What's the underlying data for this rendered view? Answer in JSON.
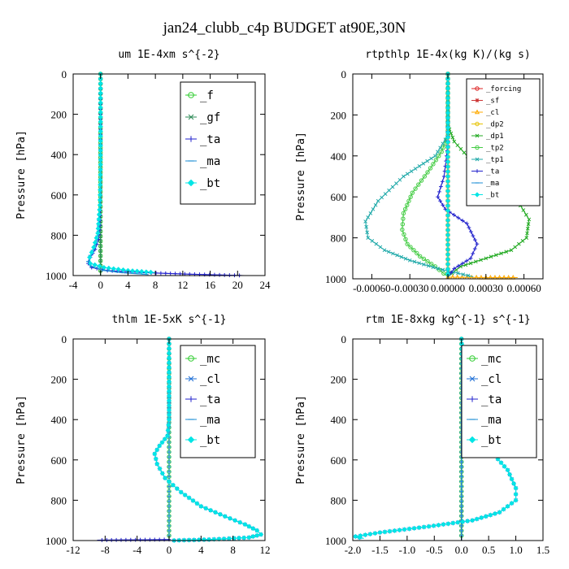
{
  "figure": {
    "title": "jan24_clubb_c4p  BUDGET at90E,30N"
  },
  "chart_data": [
    {
      "type": "line",
      "title": "um  1E-4xm s^{-2}",
      "ylabel": "Pressure [hPa]",
      "xlabel": "",
      "xlim": [
        -4,
        24
      ],
      "ylim": [
        1000,
        0
      ],
      "xticks": [
        -4,
        0,
        4,
        8,
        12,
        16,
        20,
        24
      ],
      "xtick_labels": [
        "-4",
        "0",
        "4",
        "8",
        "12",
        "16",
        "20",
        "24"
      ],
      "yticks": [
        0,
        200,
        400,
        600,
        800,
        1000
      ],
      "ytick_labels": [
        "0",
        "200",
        "400",
        "600",
        "800",
        "1000"
      ],
      "legend_position": "top-right",
      "series": [
        {
          "name": "_f",
          "color": "#2ecc2e",
          "marker": "circle",
          "x": [
            0,
            0
          ],
          "y": [
            0,
            1000
          ]
        },
        {
          "name": "_gf",
          "color": "#2e8b57",
          "marker": "x",
          "x": [
            0,
            0
          ],
          "y": [
            0,
            1000
          ]
        },
        {
          "name": "_ta",
          "color": "#2222cc",
          "marker": "plus",
          "x": [
            0,
            0,
            0,
            -0.1,
            -0.3,
            -0.8,
            -1.5,
            -1.8,
            -1.3,
            1,
            6,
            13,
            21
          ],
          "y": [
            0,
            300,
            600,
            750,
            820,
            870,
            910,
            940,
            960,
            975,
            985,
            993,
            1000
          ]
        },
        {
          "name": "_ma",
          "color": "#1f8fd6",
          "marker": "dash",
          "x": [
            0,
            0,
            -0.1,
            -0.3,
            -0.8,
            -1.5,
            -1.8,
            -1.3,
            0.5,
            3,
            7
          ],
          "y": [
            0,
            400,
            650,
            780,
            850,
            900,
            930,
            955,
            975,
            985,
            995
          ]
        },
        {
          "name": "_bt",
          "color": "#00e5e5",
          "marker": "diamond",
          "x": [
            0,
            0,
            -0.1,
            -0.4,
            -1.0,
            -1.6,
            -1.5,
            0.5,
            4,
            8
          ],
          "y": [
            0,
            450,
            650,
            790,
            860,
            910,
            940,
            960,
            975,
            985
          ]
        }
      ]
    },
    {
      "type": "line",
      "title": "rtpthlp  1E-4x(kg K)/(kg s)",
      "ylabel": "Pressure [hPa]",
      "xlabel": "",
      "xlim": [
        -0.00075,
        0.00075
      ],
      "ylim": [
        1000,
        0
      ],
      "xticks": [
        -0.0006,
        -0.0003,
        0,
        0.0003,
        0.0006
      ],
      "xtick_labels": [
        "-0.00060",
        "-0.00030",
        "0.00000",
        "0.00030",
        "0.00060"
      ],
      "yticks": [
        0,
        200,
        400,
        600,
        800,
        1000
      ],
      "ytick_labels": [
        "0",
        "200",
        "400",
        "600",
        "800",
        "1000"
      ],
      "legend_position": "top-right",
      "series": [
        {
          "name": "_forcing",
          "color": "#dd2222",
          "marker": "circle",
          "x": [
            0,
            0
          ],
          "y": [
            0,
            1000
          ]
        },
        {
          "name": "_sf",
          "color": "#cc3333",
          "marker": "star",
          "x": [
            0,
            0
          ],
          "y": [
            0,
            1000
          ]
        },
        {
          "name": "_cl",
          "color": "#ffaa00",
          "marker": "triangle",
          "x": [
            0,
            0.0003,
            0.00055
          ],
          "y": [
            992,
            994,
            994
          ]
        },
        {
          "name": "_dp2",
          "color": "#e6c200",
          "marker": "circle",
          "x": [
            0,
            0
          ],
          "y": [
            0,
            1000
          ]
        },
        {
          "name": "_dp1",
          "color": "#22aa22",
          "marker": "x",
          "x": [
            0,
            0,
            5e-05,
            0.00018,
            0.00038,
            0.00055,
            0.00064,
            0.00062,
            0.0005,
            0.0003,
            0.0001,
            0
          ],
          "y": [
            0,
            250,
            330,
            420,
            520,
            620,
            710,
            800,
            860,
            900,
            940,
            990
          ]
        },
        {
          "name": "_tp2",
          "color": "#44cc44",
          "marker": "circle",
          "x": [
            0,
            0,
            -5e-05,
            -0.00016,
            -0.00028,
            -0.00035,
            -0.00036,
            -0.00032,
            -0.00022,
            -0.0001,
            0
          ],
          "y": [
            0,
            300,
            380,
            480,
            580,
            680,
            760,
            830,
            890,
            940,
            990
          ]
        },
        {
          "name": "_tp1",
          "color": "#22aaaa",
          "marker": "x",
          "x": [
            0,
            0,
            -0.0001,
            -0.00035,
            -0.00055,
            -0.00065,
            -0.00063,
            -0.0005,
            -0.0003,
            -8e-05,
            0.0002
          ],
          "y": [
            0,
            300,
            400,
            500,
            620,
            720,
            800,
            860,
            910,
            950,
            990
          ]
        },
        {
          "name": "_ta",
          "color": "#2222cc",
          "marker": "plus",
          "x": [
            0,
            0,
            -3e-05,
            -8e-05,
            -2e-05,
            0.00015,
            0.00023,
            0.00018,
            5e-05,
            0
          ],
          "y": [
            0,
            350,
            500,
            600,
            660,
            730,
            830,
            900,
            950,
            990
          ]
        },
        {
          "name": "_ma",
          "color": "#1f8fd6",
          "marker": "dash",
          "x": [
            0,
            0
          ],
          "y": [
            0,
            1000
          ]
        },
        {
          "name": "_bt",
          "color": "#00e5e5",
          "marker": "diamond",
          "x": [
            0,
            0
          ],
          "y": [
            0,
            1000
          ]
        }
      ]
    },
    {
      "type": "line",
      "title": "thlm  1E-5xK s^{-1}",
      "ylabel": "Pressure [hPa]",
      "xlabel": "",
      "xlim": [
        -12,
        12
      ],
      "ylim": [
        1000,
        0
      ],
      "xticks": [
        -12,
        -8,
        -4,
        0,
        4,
        8,
        12
      ],
      "xtick_labels": [
        "-12",
        "-8",
        "-4",
        "0",
        "4",
        "8",
        "12"
      ],
      "yticks": [
        0,
        200,
        400,
        600,
        800,
        1000
      ],
      "ytick_labels": [
        "0",
        "200",
        "400",
        "600",
        "800",
        "1000"
      ],
      "legend_position": "top-right",
      "series": [
        {
          "name": "_mc",
          "color": "#2ecc2e",
          "marker": "circle",
          "x": [
            0,
            0
          ],
          "y": [
            0,
            1000
          ]
        },
        {
          "name": "_cl",
          "color": "#1f6fd6",
          "marker": "x",
          "x": [
            0,
            0,
            -0.2,
            -1.2,
            -1.8,
            -1.5,
            -0.5,
            1.5,
            4,
            7,
            9.5,
            11,
            11.5,
            10,
            5,
            0
          ],
          "y": [
            0,
            400,
            480,
            530,
            570,
            620,
            690,
            760,
            830,
            880,
            920,
            950,
            970,
            985,
            995,
            1000
          ]
        },
        {
          "name": "_ta",
          "color": "#2222cc",
          "marker": "plus",
          "x": [
            0,
            -3,
            -6,
            -9
          ],
          "y": [
            995,
            996,
            997,
            998
          ]
        },
        {
          "name": "_ma",
          "color": "#1f8fd6",
          "marker": "dash",
          "x": [
            0,
            0
          ],
          "y": [
            0,
            1000
          ]
        },
        {
          "name": "_bt",
          "color": "#00e5e5",
          "marker": "diamond",
          "x": [
            0,
            0,
            -0.2,
            -1.2,
            -1.8,
            -1.5,
            -0.5,
            1.5,
            4,
            7,
            9.5,
            11,
            11.5,
            10,
            5,
            0
          ],
          "y": [
            0,
            400,
            480,
            530,
            570,
            620,
            690,
            760,
            830,
            880,
            920,
            950,
            970,
            985,
            995,
            1000
          ]
        }
      ]
    },
    {
      "type": "line",
      "title": "rtm  1E-8xkg kg^{-1} s^{-1}",
      "ylabel": "Pressure [hPa]",
      "xlabel": "",
      "xlim": [
        -2.0,
        1.5
      ],
      "ylim": [
        1000,
        0
      ],
      "xticks": [
        -2.0,
        -1.5,
        -1.0,
        -0.5,
        0.0,
        0.5,
        1.0,
        1.5
      ],
      "xtick_labels": [
        "-2.0",
        "-1.5",
        "-1.0",
        "-0.5",
        "0.0",
        "0.5",
        "1.0",
        "1.5"
      ],
      "yticks": [
        0,
        200,
        400,
        600,
        800,
        1000
      ],
      "ytick_labels": [
        "0",
        "200",
        "400",
        "600",
        "800",
        "1000"
      ],
      "legend_position": "top-right",
      "series": [
        {
          "name": "_mc",
          "color": "#2ecc2e",
          "marker": "circle",
          "x": [
            0,
            0
          ],
          "y": [
            0,
            1000
          ]
        },
        {
          "name": "_cl",
          "color": "#1f6fd6",
          "marker": "x",
          "x": [
            0,
            0.03,
            0.05,
            0.06,
            0.08,
            0.25,
            0.55,
            0.85,
            1.0,
            1.0,
            0.7,
            0.2,
            -0.6,
            -1.5,
            -1.95,
            -1.8
          ],
          "y": [
            0,
            150,
            250,
            350,
            450,
            500,
            560,
            650,
            740,
            800,
            860,
            900,
            930,
            960,
            980,
            990
          ]
        },
        {
          "name": "_ta",
          "color": "#2222cc",
          "marker": "plus",
          "x": [
            0,
            0
          ],
          "y": [
            0,
            1000
          ]
        },
        {
          "name": "_ma",
          "color": "#1f8fd6",
          "marker": "dash",
          "x": [
            0,
            0
          ],
          "y": [
            0,
            1000
          ]
        },
        {
          "name": "_bt",
          "color": "#00e5e5",
          "marker": "diamond",
          "x": [
            0,
            0.03,
            0.05,
            0.06,
            0.08,
            0.25,
            0.55,
            0.85,
            1.0,
            1.0,
            0.7,
            0.2,
            -0.6,
            -1.5,
            -1.95,
            -1.8
          ],
          "y": [
            0,
            150,
            250,
            350,
            450,
            500,
            560,
            650,
            740,
            800,
            860,
            900,
            930,
            960,
            980,
            990
          ]
        }
      ]
    }
  ]
}
